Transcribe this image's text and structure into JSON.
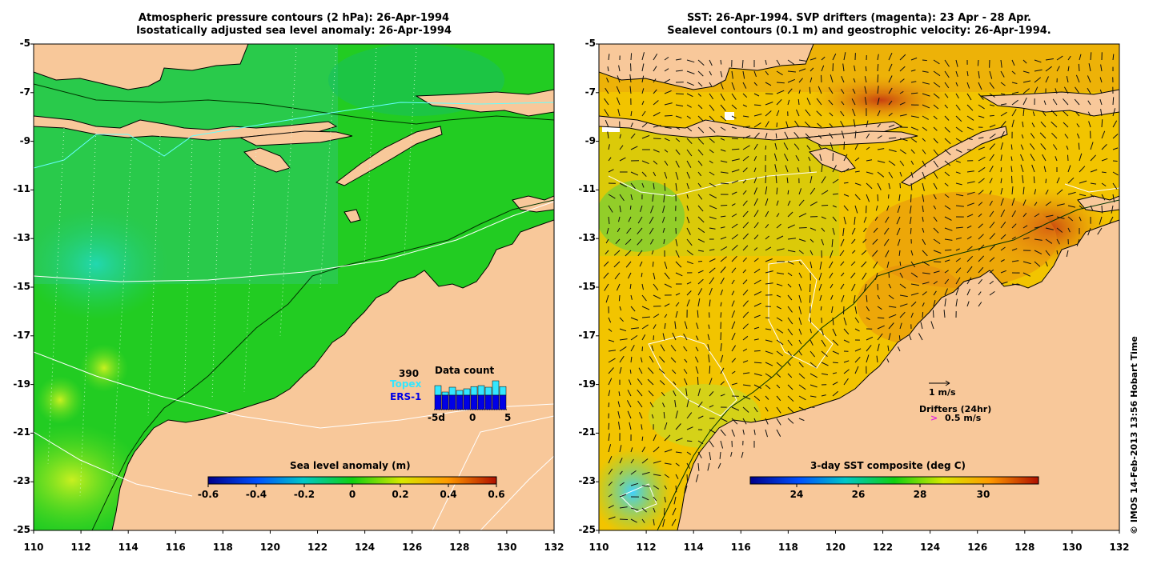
{
  "left_panel": {
    "title_line1": "Atmospheric pressure contours (2 hPa): 26-Apr-1994",
    "title_line2": "Isostatically adjusted sea level anomaly: 26-Apr-1994",
    "colorbar_title": "Sea level anomaly (m)",
    "colorbar_ticks": [
      "-0.6",
      "-0.4",
      "-0.2",
      "0",
      "0.2",
      "0.4",
      "0.6"
    ],
    "inset": {
      "count": "390",
      "mission1": "Topex",
      "mission2": "ERS-1",
      "title": "Data count",
      "x_ticks": [
        "-5d",
        "0",
        "5"
      ],
      "colors": {
        "topex": "#33e6ff",
        "ers": "#0000e6"
      }
    }
  },
  "right_panel": {
    "title_line1": "SST: 26-Apr-1994. SVP drifters (magenta): 23 Apr - 28 Apr.",
    "title_line2": "Sealevel contours (0.1 m) and geostrophic velocity: 26-Apr-1994.",
    "colorbar_title": "3-day SST composite (deg C)",
    "colorbar_ticks": [
      "24",
      "26",
      "28",
      "30"
    ],
    "velocity_scale_label": "1 m/s",
    "drifters_label": "Drifters (24hr)",
    "drifter_scale_label": "0.5 m/s",
    "drifter_marker": ">"
  },
  "axes": {
    "y_ticks": [
      "-5",
      "-7",
      "-9",
      "-11",
      "-13",
      "-15",
      "-17",
      "-19",
      "-21",
      "-23",
      "-25"
    ],
    "x_ticks": [
      "110",
      "112",
      "114",
      "116",
      "118",
      "120",
      "122",
      "124",
      "126",
      "128",
      "130",
      "132"
    ]
  },
  "credit": "© IMOS 14-Feb-2013 13:56 Hobart Time",
  "colors": {
    "land": "#f8c89a",
    "ocean_sla": "#22cc22",
    "ocean_sst": "#f2c400",
    "drifter": "#e020e0"
  }
}
